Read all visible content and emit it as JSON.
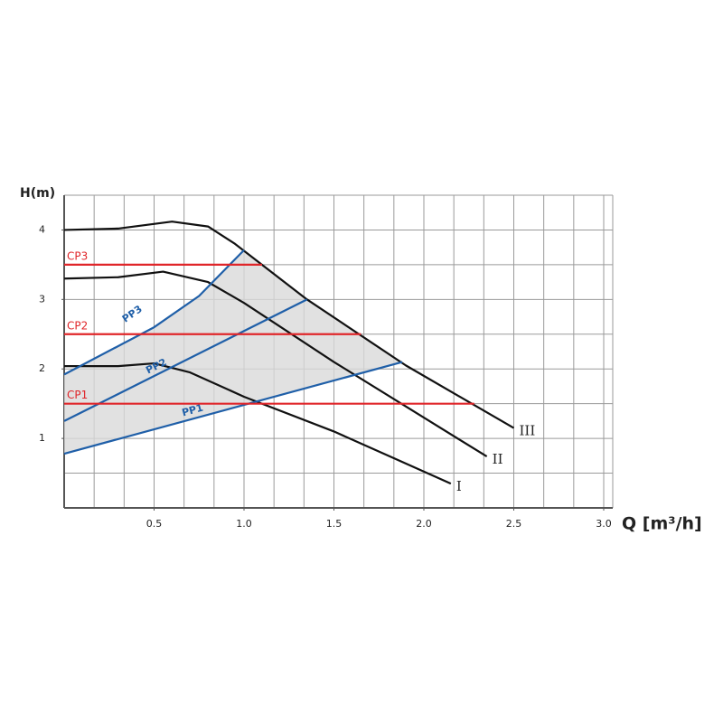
{
  "chart_data": {
    "type": "line",
    "x_label": "Q [m³/h]",
    "y_label": "H(m)",
    "xlim": [
      0,
      3.0
    ],
    "ylim": [
      0,
      4.5
    ],
    "xticks": [
      0.5,
      {
        "value": 1,
        "label": "1.0"
      },
      1.5,
      {
        "value": 2,
        "label": "2.0"
      },
      2.5,
      {
        "value": 3,
        "label": "3.0"
      }
    ],
    "yticks": [
      1,
      2,
      3,
      4
    ],
    "grid": true,
    "series": [
      {
        "name": "III",
        "color": "#111111",
        "x": [
          0,
          0.3,
          0.6,
          0.8,
          0.95,
          1.35,
          1.9,
          2.5
        ],
        "values": [
          4.0,
          4.02,
          4.12,
          4.05,
          3.8,
          3.0,
          2.05,
          1.15
        ]
      },
      {
        "name": "II",
        "color": "#111111",
        "x": [
          0,
          0.3,
          0.55,
          0.8,
          1.0,
          1.5,
          2.0,
          2.35
        ],
        "values": [
          3.3,
          3.32,
          3.4,
          3.25,
          2.95,
          2.1,
          1.3,
          0.74
        ]
      },
      {
        "name": "I",
        "color": "#111111",
        "x": [
          0,
          0.3,
          0.5,
          0.7,
          1.0,
          1.5,
          2.15
        ],
        "values": [
          2.04,
          2.04,
          2.08,
          1.95,
          1.6,
          1.1,
          0.35
        ]
      },
      {
        "name": "PP3",
        "color": "#1f5fa8",
        "x": [
          0,
          0.5,
          0.75,
          1.0
        ],
        "values": [
          1.92,
          2.6,
          3.05,
          3.71
        ]
      },
      {
        "name": "PP2",
        "color": "#1f5fa8",
        "x": [
          0,
          1.35
        ],
        "values": [
          1.25,
          3.0
        ]
      },
      {
        "name": "PP1",
        "color": "#1f5fa8",
        "x": [
          0,
          1.88
        ],
        "values": [
          0.78,
          2.1
        ]
      },
      {
        "name": "CP3",
        "color": "#e0262a",
        "x": [
          0,
          1.1
        ],
        "values": [
          3.5,
          3.5
        ]
      },
      {
        "name": "CP2",
        "color": "#e0262a",
        "x": [
          0,
          1.65
        ],
        "values": [
          2.5,
          2.5
        ]
      },
      {
        "name": "CP1",
        "color": "#e0262a",
        "x": [
          0,
          2.28
        ],
        "values": [
          1.5,
          1.5
        ]
      }
    ]
  }
}
